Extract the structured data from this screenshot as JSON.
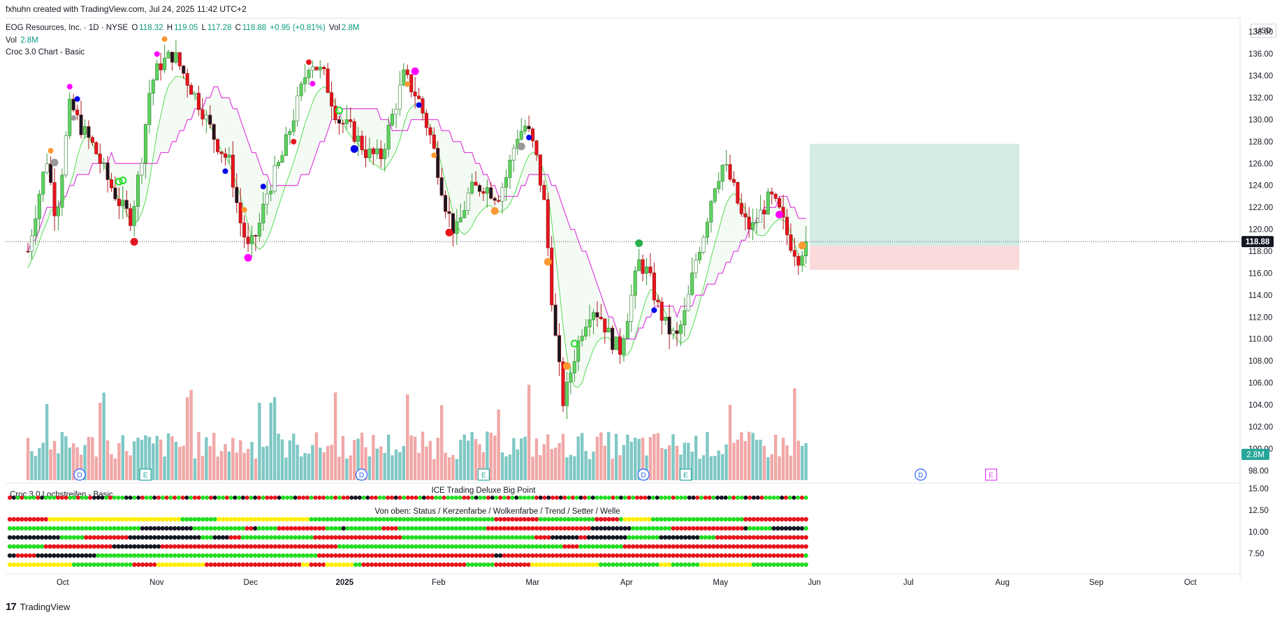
{
  "header": {
    "credit": "fxhuhn created with TradingView.com, Jul 24, 2025 11:42 UTC+2"
  },
  "legend": {
    "symbol": "EOG Resources, Inc. · 1D · NYSE",
    "o_label": "O",
    "o_value": "118.32",
    "h_label": "H",
    "h_value": "119.05",
    "l_label": "L",
    "l_value": "117.28",
    "c_label": "C",
    "c_value": "118.88",
    "change": "+0.95 (+0.81%)",
    "vol_label": "Vol",
    "vol_value": "2.8M",
    "vol_line_label": "Vol",
    "vol_line_value": "2.8M",
    "indicator": "Croc 3.0 Chart - Basic"
  },
  "price_axis": {
    "currency": "USD",
    "last_price": "118.88",
    "last_volume": "2.8M"
  },
  "panes": {
    "lower_indicator": "Croc 3.0 Lochstreifen - Basic",
    "big_point_title": "ICE Trading Deluxe Big Point",
    "rows_title": "Von oben: Status / Kerzenfarbe / Wolkenfarbe / Trend / Setter / Welle"
  },
  "footer": {
    "logo": "17",
    "brand": "TradingView"
  },
  "colors": {
    "up": "#5fd35f",
    "down": "#e8141c",
    "black": "#131722",
    "cloud_upper": "#55dd55",
    "cloud_lower": "#e040e0",
    "vol_up": "#7fc8c4",
    "vol_down": "#f1a7a7",
    "target_box": "#cde9e2",
    "stop_box": "#f9d6d6",
    "axis_badge": "#131722",
    "vol_badge": "#26a69a"
  },
  "chart_data": {
    "type": "candlestick",
    "title": "EOG Resources, Inc. · 1D · NYSE",
    "x_ticks": [
      "Oct",
      "Nov",
      "Dec",
      "2025",
      "Feb",
      "Mar",
      "Apr",
      "May",
      "Jun",
      "Jul",
      "Aug",
      "Sep",
      "Oct"
    ],
    "y_ticks": [
      "98.00",
      "100.00",
      "102.00",
      "104.00",
      "106.00",
      "108.00",
      "110.00",
      "112.00",
      "114.00",
      "116.00",
      "118.00",
      "120.00",
      "122.00",
      "124.00",
      "126.00",
      "128.00",
      "130.00",
      "132.00",
      "134.00",
      "136.00",
      "138.00"
    ],
    "ylim": [
      97,
      139
    ],
    "lower_y_ticks": [
      "15.00",
      "12.50",
      "10.00",
      "7.50"
    ],
    "last_close": 118.88,
    "position_box": {
      "entry": 118.5,
      "target": 127.8,
      "stop": 116.3
    },
    "events": [
      {
        "label": "D",
        "month_index": 0.55
      },
      {
        "label": "E",
        "month_index": 1.25
      },
      {
        "label": "D",
        "month_index": 3.55
      },
      {
        "label": "E",
        "month_index": 4.85
      },
      {
        "label": "D",
        "month_index": 6.55
      },
      {
        "label": "E",
        "month_index": 7.0
      },
      {
        "label": "D",
        "month_index": 9.5
      },
      {
        "label": "E",
        "month_index": 10.25
      }
    ],
    "price_path": [
      [
        0,
        118.0
      ],
      [
        0.1,
        122.5
      ],
      [
        0.2,
        126.5
      ],
      [
        0.3,
        121.0
      ],
      [
        0.45,
        131.5
      ],
      [
        0.55,
        129.5
      ],
      [
        0.7,
        127.5
      ],
      [
        0.85,
        124.5
      ],
      [
        1.0,
        122.0
      ],
      [
        1.1,
        121.0
      ],
      [
        1.2,
        126.0
      ],
      [
        1.3,
        133.0
      ],
      [
        1.4,
        135.0
      ],
      [
        1.55,
        136.0
      ],
      [
        1.7,
        133.5
      ],
      [
        1.85,
        131.0
      ],
      [
        2.0,
        128.0
      ],
      [
        2.15,
        126.0
      ],
      [
        2.25,
        121.0
      ],
      [
        2.35,
        118.0
      ],
      [
        2.45,
        120.0
      ],
      [
        2.55,
        123.5
      ],
      [
        2.7,
        126.5
      ],
      [
        2.85,
        131.0
      ],
      [
        3.0,
        135.5
      ],
      [
        3.15,
        134.0
      ],
      [
        3.3,
        130.0
      ],
      [
        3.45,
        129.0
      ],
      [
        3.6,
        127.0
      ],
      [
        3.75,
        126.5
      ],
      [
        3.9,
        131.0
      ],
      [
        4.0,
        134.0
      ],
      [
        4.15,
        132.0
      ],
      [
        4.3,
        128.0
      ],
      [
        4.45,
        122.0
      ],
      [
        4.55,
        119.5
      ],
      [
        4.7,
        123.5
      ],
      [
        4.85,
        124.0
      ],
      [
        5.0,
        123.0
      ],
      [
        5.1,
        125.0
      ],
      [
        5.2,
        128.5
      ],
      [
        5.3,
        129.5
      ],
      [
        5.4,
        127.0
      ],
      [
        5.5,
        122.0
      ],
      [
        5.6,
        111.0
      ],
      [
        5.7,
        104.0
      ],
      [
        5.8,
        108.0
      ],
      [
        5.9,
        111.0
      ],
      [
        6.0,
        113.0
      ],
      [
        6.1,
        112.0
      ],
      [
        6.2,
        110.0
      ],
      [
        6.3,
        109.0
      ],
      [
        6.4,
        113.0
      ],
      [
        6.5,
        117.0
      ],
      [
        6.6,
        116.0
      ],
      [
        6.7,
        113.0
      ],
      [
        6.8,
        111.0
      ],
      [
        6.9,
        110.0
      ],
      [
        7.0,
        112.5
      ],
      [
        7.1,
        117.0
      ],
      [
        7.2,
        120.0
      ],
      [
        7.3,
        124.0
      ],
      [
        7.4,
        126.0
      ],
      [
        7.5,
        124.0
      ],
      [
        7.6,
        121.0
      ],
      [
        7.7,
        120.0
      ],
      [
        7.8,
        121.5
      ],
      [
        7.9,
        123.0
      ],
      [
        8.0,
        121.5
      ],
      [
        8.1,
        119.0
      ],
      [
        8.2,
        117.5
      ],
      [
        8.28,
        118.88
      ]
    ]
  }
}
